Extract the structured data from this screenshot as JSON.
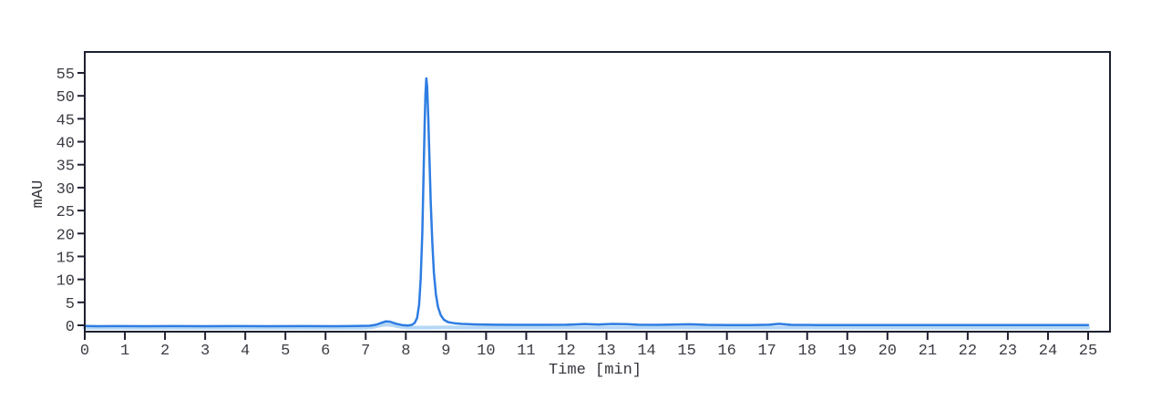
{
  "figure": {
    "background": "#ffffff",
    "frame_color": "#1c2030",
    "tick_color": "#1c2030",
    "tick_label_color": "#3c3c44"
  },
  "chart_data": {
    "type": "line",
    "title": "",
    "xlabel": "Time [min]",
    "ylabel": "mAU",
    "xlim": [
      0,
      25.55
    ],
    "ylim": [
      -1.4,
      59.6
    ],
    "xticks": [
      0,
      1,
      2,
      3,
      4,
      5,
      6,
      7,
      8,
      9,
      10,
      11,
      12,
      13,
      14,
      15,
      16,
      17,
      18,
      19,
      20,
      21,
      22,
      23,
      24,
      25
    ],
    "yticks": [
      0,
      5,
      10,
      15,
      20,
      25,
      30,
      35,
      40,
      45,
      50,
      55
    ],
    "grid": false,
    "legend": null,
    "peaks": [
      {
        "time_min": 8.5,
        "height_mAU": 53.8
      },
      {
        "time_min": 7.5,
        "height_mAU": 0.9
      }
    ],
    "series": [
      {
        "name": "baseline-underlay",
        "color": "#b5d7f4",
        "width": 4,
        "points": [
          [
            0,
            -0.55
          ],
          [
            6.9,
            -0.55
          ],
          [
            7.15,
            -0.45
          ],
          [
            7.35,
            -0.05
          ],
          [
            7.5,
            0.15
          ],
          [
            7.65,
            0.05
          ],
          [
            7.85,
            -0.3
          ],
          [
            8.05,
            -0.5
          ],
          [
            8.6,
            -0.5
          ],
          [
            9.0,
            -0.45
          ],
          [
            9.5,
            -0.5
          ],
          [
            25,
            -0.52
          ]
        ]
      },
      {
        "name": "signal",
        "color": "#2e7de2",
        "width": 2.5,
        "points": [
          [
            0,
            -0.15
          ],
          [
            0.3,
            -0.2
          ],
          [
            0.8,
            -0.18
          ],
          [
            1.5,
            -0.2
          ],
          [
            2.2,
            -0.18
          ],
          [
            3,
            -0.2
          ],
          [
            3.8,
            -0.18
          ],
          [
            4.6,
            -0.2
          ],
          [
            5.4,
            -0.18
          ],
          [
            6.2,
            -0.2
          ],
          [
            6.8,
            -0.15
          ],
          [
            7.1,
            -0.1
          ],
          [
            7.25,
            0.1
          ],
          [
            7.4,
            0.55
          ],
          [
            7.5,
            0.85
          ],
          [
            7.6,
            0.8
          ],
          [
            7.75,
            0.35
          ],
          [
            7.9,
            0.05
          ],
          [
            8.05,
            -0.05
          ],
          [
            8.15,
            0.1
          ],
          [
            8.22,
            0.5
          ],
          [
            8.28,
            1.6
          ],
          [
            8.33,
            4.5
          ],
          [
            8.37,
            10
          ],
          [
            8.41,
            20
          ],
          [
            8.44,
            32
          ],
          [
            8.47,
            44
          ],
          [
            8.49,
            50.5
          ],
          [
            8.51,
            53.8
          ],
          [
            8.53,
            52
          ],
          [
            8.56,
            45
          ],
          [
            8.59,
            36
          ],
          [
            8.62,
            27
          ],
          [
            8.66,
            18
          ],
          [
            8.7,
            11.5
          ],
          [
            8.75,
            6.8
          ],
          [
            8.8,
            4.0
          ],
          [
            8.87,
            2.2
          ],
          [
            8.95,
            1.2
          ],
          [
            9.05,
            0.7
          ],
          [
            9.2,
            0.45
          ],
          [
            9.4,
            0.3
          ],
          [
            9.7,
            0.2
          ],
          [
            10.2,
            0.12
          ],
          [
            10.8,
            0.1
          ],
          [
            11.4,
            0.1
          ],
          [
            12.0,
            0.12
          ],
          [
            12.45,
            0.28
          ],
          [
            12.8,
            0.18
          ],
          [
            13.15,
            0.3
          ],
          [
            13.5,
            0.25
          ],
          [
            13.8,
            0.12
          ],
          [
            14.3,
            0.1
          ],
          [
            14.75,
            0.18
          ],
          [
            15.1,
            0.22
          ],
          [
            15.5,
            0.1
          ],
          [
            16.0,
            0.06
          ],
          [
            16.6,
            0.06
          ],
          [
            17.05,
            0.12
          ],
          [
            17.3,
            0.32
          ],
          [
            17.6,
            0.1
          ],
          [
            18.2,
            0.06
          ],
          [
            19,
            0.06
          ],
          [
            20,
            0.06
          ],
          [
            21,
            0.05
          ],
          [
            22,
            0.04
          ],
          [
            23,
            0.04
          ],
          [
            24,
            0.04
          ],
          [
            25,
            0.06
          ]
        ]
      }
    ]
  }
}
